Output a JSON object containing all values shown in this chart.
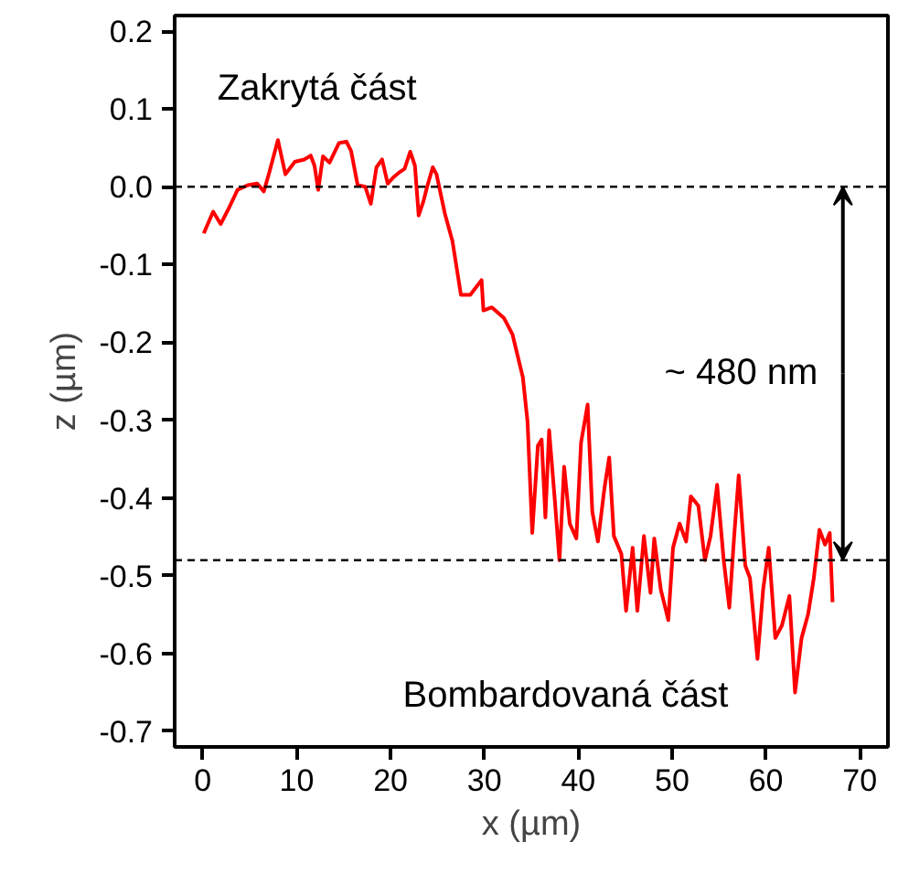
{
  "chart_data": {
    "type": "line",
    "xlabel": "x (µm)",
    "ylabel": "z (µm)",
    "xlim": [
      -3,
      73
    ],
    "ylim": [
      -0.72,
      0.22
    ],
    "xticks": [
      0,
      10,
      20,
      30,
      40,
      50,
      60,
      70
    ],
    "yticks": [
      -0.7,
      -0.6,
      -0.5,
      -0.4,
      -0.3,
      -0.2,
      -0.1,
      {
        "value": 0,
        "label": "0.0"
      },
      0.1,
      0.2
    ],
    "grid": false,
    "line_style": "solid",
    "series": [
      {
        "color": "#ff0000",
        "x": [
          0.1,
          1.1,
          1.9,
          2.8,
          3.7,
          4.8,
          5.8,
          6.5,
          7.1,
          8.0,
          8.8,
          9.8,
          10.8,
          11.5,
          11.9,
          12.3,
          12.8,
          13.5,
          14.5,
          15.3,
          15.8,
          16.5,
          17.3,
          17.9,
          18.5,
          19.1,
          19.7,
          20.3,
          21.0,
          21.5,
          22.1,
          22.6,
          23.0,
          23.5,
          23.9,
          24.5,
          24.9,
          25.8,
          26.6,
          27.5,
          28.5,
          29.7,
          29.9,
          30.8,
          32.1,
          33.0,
          34.1,
          34.6,
          35.1,
          35.7,
          36.1,
          36.5,
          36.9,
          37.5,
          38.0,
          38.5,
          39.1,
          39.8,
          40.3,
          41.0,
          41.5,
          42.1,
          42.8,
          43.3,
          43.8,
          44.6,
          45.1,
          45.8,
          46.3,
          47.0,
          47.7,
          48.1,
          48.8,
          49.6,
          50.1,
          50.8,
          51.5,
          52.0,
          52.8,
          53.5,
          54.1,
          54.8,
          55.5,
          56.1,
          56.6,
          57.1,
          57.8,
          58.3,
          59.1,
          59.7,
          60.3,
          61.0,
          61.7,
          62.5,
          63.1,
          63.8,
          64.5,
          65.1,
          65.7,
          66.3,
          66.8,
          67.1
        ],
        "values": [
          -0.06,
          -0.032,
          -0.048,
          -0.027,
          -0.004,
          0.002,
          0.004,
          -0.006,
          0.019,
          0.06,
          0.016,
          0.032,
          0.035,
          0.04,
          0.027,
          -0.004,
          0.039,
          0.031,
          0.056,
          0.058,
          0.046,
          0.002,
          0.0,
          -0.022,
          0.025,
          0.035,
          0.004,
          0.012,
          0.019,
          0.023,
          0.045,
          0.027,
          -0.037,
          -0.019,
          0.0,
          0.025,
          0.016,
          -0.035,
          -0.07,
          -0.139,
          -0.139,
          -0.12,
          -0.159,
          -0.155,
          -0.169,
          -0.19,
          -0.245,
          -0.302,
          -0.445,
          -0.333,
          -0.325,
          -0.425,
          -0.313,
          -0.402,
          -0.48,
          -0.36,
          -0.433,
          -0.452,
          -0.329,
          -0.28,
          -0.418,
          -0.456,
          -0.387,
          -0.348,
          -0.449,
          -0.472,
          -0.545,
          -0.464,
          -0.545,
          -0.449,
          -0.522,
          -0.452,
          -0.518,
          -0.557,
          -0.464,
          -0.433,
          -0.456,
          -0.398,
          -0.41,
          -0.48,
          -0.449,
          -0.383,
          -0.48,
          -0.541,
          -0.452,
          -0.371,
          -0.487,
          -0.503,
          -0.607,
          -0.518,
          -0.464,
          -0.58,
          -0.564,
          -0.526,
          -0.65,
          -0.58,
          -0.549,
          -0.503,
          -0.441,
          -0.46,
          -0.445,
          -0.534
        ]
      }
    ],
    "ref_lines": [
      {
        "axis": "y",
        "value": 0,
        "color": "#000000",
        "line_style": "dashed"
      },
      {
        "axis": "y",
        "value": -0.48,
        "color": "#000000",
        "line_style": "dashed"
      }
    ],
    "annotations": [
      "Zakrytá část",
      {
        "text": "~ 480 nm",
        "x": 68.2,
        "y": -0.48
      },
      "Bombardovaná část"
    ]
  }
}
